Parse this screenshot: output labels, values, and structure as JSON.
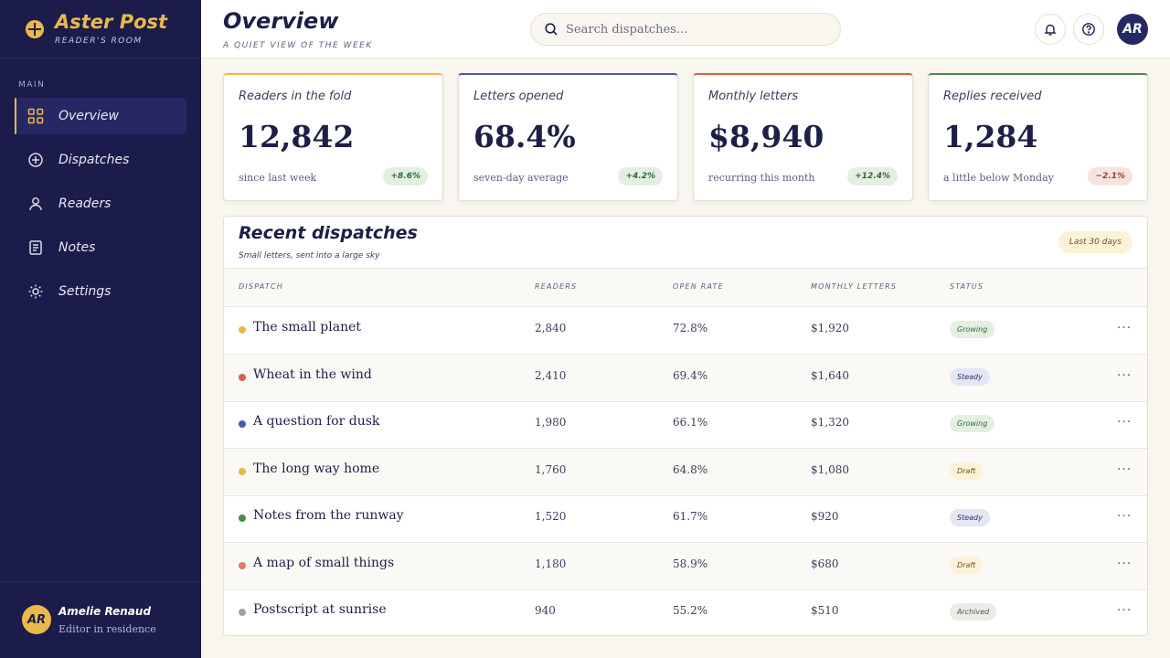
{
  "brand": {
    "title": "Aster Post",
    "subtitle": "READER'S ROOM"
  },
  "sidebar": {
    "section_label": "MAIN",
    "items": [
      {
        "label": "Overview",
        "icon": "grid-icon",
        "active": true
      },
      {
        "label": "Dispatches",
        "icon": "plus-circle-icon",
        "active": false
      },
      {
        "label": "Readers",
        "icon": "user-icon",
        "active": false
      },
      {
        "label": "Notes",
        "icon": "note-icon",
        "active": false
      },
      {
        "label": "Settings",
        "icon": "sun-gear-icon",
        "active": false
      }
    ],
    "user": {
      "initials": "AR",
      "name": "Amelie Renaud",
      "role": "Editor in residence"
    }
  },
  "header": {
    "title": "Overview",
    "subtitle": "A QUIET VIEW OF THE WEEK",
    "search_placeholder": "Search dispatches...",
    "avatar_initials": "AR"
  },
  "stats": [
    {
      "label": "Readers in the fold",
      "value": "12,842",
      "caption": "since last week",
      "delta": "+8.6%",
      "trend": "up",
      "accent": "#e9b949"
    },
    {
      "label": "Letters opened",
      "value": "68.4%",
      "caption": "seven-day average",
      "delta": "+4.2%",
      "trend": "up",
      "accent": "#4a5aa8"
    },
    {
      "label": "Monthly letters",
      "value": "$8,940",
      "caption": "recurring this month",
      "delta": "+12.4%",
      "trend": "up",
      "accent": "#d9624a"
    },
    {
      "label": "Replies received",
      "value": "1,284",
      "caption": "a little below Monday",
      "delta": "−2.1%",
      "trend": "down",
      "accent": "#4f8a4a"
    }
  ],
  "dispatches": {
    "title": "Recent dispatches",
    "subtitle": "Small letters, sent into a large sky",
    "range": "Last 30 days",
    "columns": [
      "DISPATCH",
      "READERS",
      "OPEN RATE",
      "MONTHLY LETTERS",
      "STATUS"
    ],
    "rows": [
      {
        "name": "The small planet",
        "readers": "2,840",
        "open_rate": "72.8%",
        "letters": "$1,920",
        "status": "Growing",
        "dot": "#e9b949"
      },
      {
        "name": "Wheat in the wind",
        "readers": "2,410",
        "open_rate": "69.4%",
        "letters": "$1,640",
        "status": "Steady",
        "dot": "#d9624a"
      },
      {
        "name": "A question for dusk",
        "readers": "1,980",
        "open_rate": "66.1%",
        "letters": "$1,320",
        "status": "Growing",
        "dot": "#4a5aa8"
      },
      {
        "name": "The long way home",
        "readers": "1,760",
        "open_rate": "64.8%",
        "letters": "$1,080",
        "status": "Draft",
        "dot": "#e9b949"
      },
      {
        "name": "Notes from the runway",
        "readers": "1,520",
        "open_rate": "61.7%",
        "letters": "$920",
        "status": "Steady",
        "dot": "#4f8a4a"
      },
      {
        "name": "A map of small things",
        "readers": "1,180",
        "open_rate": "58.9%",
        "letters": "$680",
        "status": "Draft",
        "dot": "#e07a68"
      },
      {
        "name": "Postscript at sunrise",
        "readers": "940",
        "open_rate": "55.2%",
        "letters": "$510",
        "status": "Archived",
        "dot": "#a4a39a"
      }
    ]
  }
}
